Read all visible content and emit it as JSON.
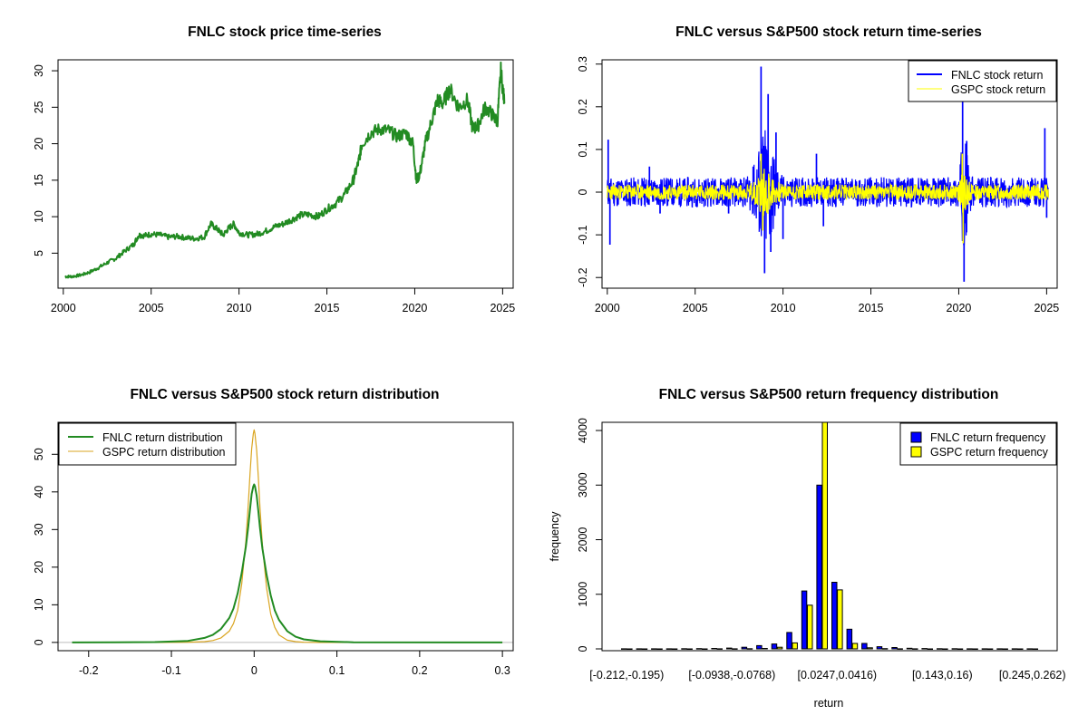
{
  "chart_data": [
    {
      "id": "price",
      "type": "line",
      "title": "FNLC stock price time-series",
      "xlabel": "",
      "ylabel": "",
      "xlim": [
        1999.7,
        2025.6
      ],
      "ylim": [
        0.2,
        31.5
      ],
      "x_ticks": [
        2000,
        2005,
        2010,
        2015,
        2020,
        2025
      ],
      "y_ticks": [
        5,
        10,
        15,
        20,
        25,
        30
      ],
      "colors": {
        "line": "#228b22"
      },
      "series": [
        {
          "x": [
            2000.1,
            2000.5,
            2001.0,
            2001.5,
            2002.0,
            2002.5,
            2003.0,
            2003.5,
            2004.0,
            2004.3,
            2004.6,
            2005.0,
            2005.5,
            2006.0,
            2006.5,
            2007.0,
            2007.5,
            2008.0,
            2008.4,
            2008.8,
            2009.1,
            2009.4,
            2009.7,
            2010.0,
            2010.5,
            2011.0,
            2011.5,
            2012.0,
            2012.5,
            2013.0,
            2013.5,
            2014.0,
            2014.5,
            2015.0,
            2015.5,
            2016.0,
            2016.5,
            2016.8,
            2017.0,
            2017.5,
            2018.0,
            2018.5,
            2019.0,
            2019.5,
            2019.9,
            2020.1,
            2020.3,
            2020.6,
            2021.0,
            2021.3,
            2021.6,
            2022.0,
            2022.5,
            2023.0,
            2023.3,
            2023.6,
            2024.0,
            2024.4,
            2024.7,
            2024.9,
            2025.1
          ],
          "values": [
            1.8,
            1.8,
            2.0,
            2.4,
            3.0,
            3.7,
            4.3,
            5.3,
            6.2,
            7.5,
            7.4,
            7.6,
            7.5,
            7.2,
            7.3,
            7.1,
            7.0,
            7.2,
            9.0,
            8.2,
            7.5,
            8.4,
            9.0,
            7.8,
            7.5,
            7.6,
            8.0,
            8.6,
            9.0,
            9.6,
            10.2,
            10.3,
            10.0,
            11.0,
            11.8,
            13.0,
            15.0,
            17.5,
            20.0,
            21.5,
            22.0,
            21.8,
            21.0,
            21.5,
            20.0,
            14.8,
            16.0,
            20.0,
            23.5,
            26.0,
            25.5,
            27.5,
            25.0,
            26.0,
            22.0,
            22.5,
            25.0,
            24.0,
            23.0,
            30.0,
            25.5
          ]
        }
      ]
    },
    {
      "id": "returns",
      "type": "line",
      "title": "FNLC versus S&P500 stock return time-series",
      "xlabel": "",
      "ylabel": "",
      "xlim": [
        1999.7,
        2025.6
      ],
      "ylim": [
        -0.225,
        0.31
      ],
      "x_ticks": [
        2000,
        2005,
        2010,
        2015,
        2020,
        2025
      ],
      "y_ticks": [
        -0.2,
        -0.1,
        0.0,
        0.1,
        0.2,
        0.3
      ],
      "legend": {
        "position": "top-right",
        "entries": [
          "FNLC stock return",
          "GSPC stock return"
        ]
      },
      "colors": {
        "FNLC": "#0000ff",
        "GSPC": "#ffff00"
      },
      "series": [
        {
          "name": "FNLC stock return",
          "peaks": [
            {
              "x": 2000.05,
              "v": 0.123
            },
            {
              "x": 2000.15,
              "v": -0.123
            },
            {
              "x": 2002.4,
              "v": 0.06
            },
            {
              "x": 2003.0,
              "v": -0.05
            },
            {
              "x": 2006.9,
              "v": -0.05
            },
            {
              "x": 2008.3,
              "v": 0.06
            },
            {
              "x": 2008.75,
              "v": 0.294
            },
            {
              "x": 2008.95,
              "v": -0.19
            },
            {
              "x": 2009.15,
              "v": 0.23
            },
            {
              "x": 2009.3,
              "v": -0.14
            },
            {
              "x": 2009.6,
              "v": 0.14
            },
            {
              "x": 2010.0,
              "v": -0.11
            },
            {
              "x": 2011.9,
              "v": 0.09
            },
            {
              "x": 2012.3,
              "v": -0.08
            },
            {
              "x": 2020.22,
              "v": 0.29
            },
            {
              "x": 2020.3,
              "v": -0.21
            },
            {
              "x": 2020.45,
              "v": 0.12
            },
            {
              "x": 2024.9,
              "v": 0.15
            },
            {
              "x": 2025.0,
              "v": -0.06
            }
          ]
        },
        {
          "name": "GSPC stock return",
          "peaks": [
            {
              "x": 2008.75,
              "v": 0.09
            },
            {
              "x": 2008.85,
              "v": -0.09
            },
            {
              "x": 2020.2,
              "v": 0.09
            },
            {
              "x": 2020.25,
              "v": -0.12
            }
          ]
        }
      ]
    },
    {
      "id": "density",
      "type": "line",
      "title": "FNLC versus S&P500 stock return distribution",
      "xlabel": "",
      "ylabel": "",
      "xlim": [
        -0.237,
        0.313
      ],
      "ylim": [
        -2.2,
        58.5
      ],
      "x_ticks": [
        -0.2,
        -0.1,
        0.0,
        0.1,
        0.2,
        0.3
      ],
      "y_ticks": [
        0,
        10,
        20,
        30,
        40,
        50
      ],
      "legend": {
        "position": "top-left",
        "entries": [
          "FNLC return distribution",
          "GSPC return distribution"
        ]
      },
      "colors": {
        "FNLC": "#228b22",
        "GSPC": "#daa520",
        "baseline": "#bebebe"
      },
      "x": [
        -0.22,
        -0.12,
        -0.08,
        -0.06,
        -0.05,
        -0.04,
        -0.03,
        -0.025,
        -0.02,
        -0.015,
        -0.01,
        -0.007,
        -0.005,
        -0.003,
        -0.001,
        0.0,
        0.001,
        0.003,
        0.005,
        0.007,
        0.01,
        0.015,
        0.02,
        0.025,
        0.03,
        0.04,
        0.05,
        0.06,
        0.08,
        0.12,
        0.3
      ],
      "series": [
        {
          "name": "FNLC return distribution",
          "values": [
            0,
            0.1,
            0.4,
            1.2,
            2.0,
            3.6,
            6.5,
            9.0,
            13.0,
            18.5,
            25.5,
            31.0,
            35.5,
            39.5,
            41.5,
            42.0,
            41.5,
            39.0,
            35.0,
            30.5,
            25.0,
            18.0,
            12.5,
            8.5,
            6.0,
            3.0,
            1.5,
            0.8,
            0.3,
            0.05,
            0
          ]
        },
        {
          "name": "GSPC return distribution",
          "values": [
            0,
            0,
            0.05,
            0.2,
            0.5,
            1.2,
            3.0,
            5.0,
            8.5,
            15.5,
            27.0,
            37.0,
            45.0,
            51.5,
            55.5,
            56.5,
            55.5,
            51.0,
            44.0,
            36.0,
            26.0,
            14.5,
            7.5,
            4.0,
            2.0,
            0.6,
            0.2,
            0.05,
            0,
            0,
            0
          ]
        }
      ]
    },
    {
      "id": "frequency",
      "type": "bar",
      "title": "FNLC versus S&P500 return frequency distribution",
      "xlabel": "return",
      "ylabel": "frequency",
      "ylim": [
        0,
        4150
      ],
      "y_ticks": [
        0,
        1000,
        2000,
        3000,
        4000
      ],
      "tick_labels": [
        "[-0.212,-0.195)",
        "[-0.0938,-0.0768)",
        "[0.0247,0.0416)",
        "[0.143,0.16)",
        "[0.245,0.262)"
      ],
      "tick_label_bins": [
        0,
        7,
        14,
        21,
        27
      ],
      "legend": {
        "position": "top-right",
        "entries": [
          "FNLC return frequency",
          "GSPC return frequency"
        ]
      },
      "colors": {
        "FNLC": "#0000ff",
        "GSPC": "#ffff00"
      },
      "bins": 28,
      "series": [
        {
          "name": "FNLC return frequency",
          "values": [
            1,
            1,
            1,
            2,
            3,
            5,
            8,
            15,
            30,
            60,
            90,
            300,
            1060,
            3000,
            1220,
            360,
            100,
            40,
            25,
            12,
            6,
            4,
            3,
            2,
            1,
            1,
            1,
            2
          ]
        },
        {
          "name": "GSPC return frequency",
          "values": [
            0,
            0,
            0,
            0,
            0,
            0,
            1,
            2,
            4,
            8,
            30,
            110,
            800,
            4200,
            1080,
            100,
            20,
            5,
            2,
            1,
            0,
            0,
            0,
            0,
            0,
            0,
            0,
            0
          ]
        }
      ]
    }
  ]
}
